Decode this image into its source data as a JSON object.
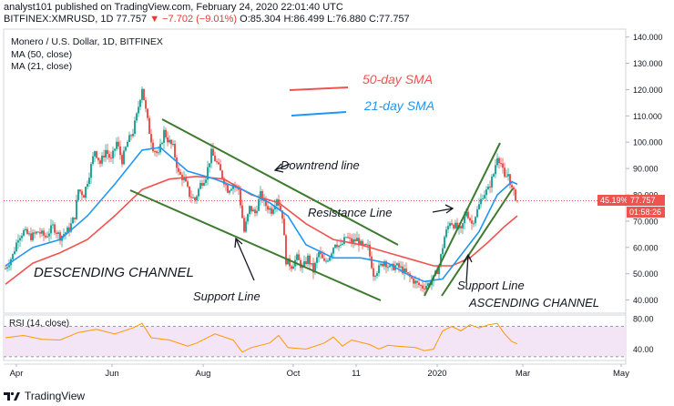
{
  "header": {
    "line1": "analyst101 published on TradingView.com, February 24, 2020 22:01:40 UTC",
    "symbol": "BITFINEX:XMRUSD, 1D",
    "close_text": "77.757",
    "change_text": "▼ −7.702 (−9.01%)",
    "ohlc_text": "O:85.304  H:86.499  L:76.880  C:77.757"
  },
  "legend": {
    "title": "Monero / U.S. Dollar, 1D, BITFINEX",
    "ma50": "MA (50, close)",
    "ma21": "MA (21, close)"
  },
  "annotations": {
    "sma50": "50-day SMA",
    "sma21": "21-day SMA",
    "downtrend": "Downtrend line",
    "resistance": "Resistance Line",
    "descending": "DESCENDING CHANNEL",
    "support_left": "Support Line",
    "support_right": "Support Line",
    "ascending": "ASCENDING CHANNEL"
  },
  "price_axis": {
    "ticks": [
      "140.000",
      "130.000",
      "120.000",
      "110.000",
      "100.000",
      "90.000",
      "80.000",
      "70.000",
      "60.000",
      "50.000",
      "40.000"
    ],
    "current_price": "77.757",
    "pct_badge": "45.19%",
    "countdown": "01:58:26"
  },
  "rsi": {
    "label": "RSI (14, close)",
    "ticks": [
      "80.00",
      "40.00"
    ]
  },
  "time_axis": [
    "Apr",
    "Jun",
    "Aug",
    "Oct",
    "11",
    "2020",
    "Mar",
    "May"
  ],
  "footer": {
    "brand": "TradingView"
  },
  "colors": {
    "up": "#26a69a",
    "down": "#ef5350",
    "ma50": "#ef5350",
    "ma21": "#2196f3",
    "channel": "#3d7a2e",
    "rsi_line": "#ff9800",
    "rsi_band": "#f3e5f5"
  },
  "chart_data": {
    "type": "candlestick",
    "title": "Monero / U.S. Dollar, 1D, BITFINEX",
    "ylim": [
      35,
      143
    ],
    "price_closes": [
      [
        0,
        52
      ],
      [
        8,
        57
      ],
      [
        14,
        64
      ],
      [
        20,
        66
      ],
      [
        28,
        64
      ],
      [
        36,
        66
      ],
      [
        44,
        64
      ],
      [
        52,
        68
      ],
      [
        60,
        64
      ],
      [
        70,
        67
      ],
      [
        76,
        72
      ],
      [
        80,
        82
      ],
      [
        86,
        80
      ],
      [
        92,
        88
      ],
      [
        98,
        97
      ],
      [
        104,
        92
      ],
      [
        110,
        97
      ],
      [
        116,
        93
      ],
      [
        122,
        100
      ],
      [
        128,
        93
      ],
      [
        134,
        100
      ],
      [
        140,
        104
      ],
      [
        144,
        110
      ],
      [
        150,
        121
      ],
      [
        154,
        112
      ],
      [
        158,
        104
      ],
      [
        162,
        98
      ],
      [
        168,
        95
      ],
      [
        174,
        104
      ],
      [
        178,
        101
      ],
      [
        184,
        98
      ],
      [
        190,
        88
      ],
      [
        196,
        86
      ],
      [
        202,
        80
      ],
      [
        208,
        78
      ],
      [
        214,
        84
      ],
      [
        220,
        87
      ],
      [
        226,
        96
      ],
      [
        232,
        92
      ],
      [
        238,
        87
      ],
      [
        244,
        82
      ],
      [
        250,
        84
      ],
      [
        256,
        82
      ],
      [
        262,
        66
      ],
      [
        268,
        75
      ],
      [
        274,
        73
      ],
      [
        280,
        80
      ],
      [
        286,
        76
      ],
      [
        292,
        74
      ],
      [
        298,
        79
      ],
      [
        304,
        72
      ],
      [
        308,
        55
      ],
      [
        314,
        53
      ],
      [
        320,
        56
      ],
      [
        326,
        52
      ],
      [
        332,
        56
      ],
      [
        338,
        51
      ],
      [
        344,
        58
      ],
      [
        350,
        54
      ],
      [
        356,
        57
      ],
      [
        362,
        62
      ],
      [
        368,
        60
      ],
      [
        374,
        64
      ],
      [
        380,
        62
      ],
      [
        386,
        63
      ],
      [
        392,
        60
      ],
      [
        398,
        60
      ],
      [
        404,
        50
      ],
      [
        410,
        52
      ],
      [
        416,
        55
      ],
      [
        422,
        52
      ],
      [
        428,
        53
      ],
      [
        434,
        52
      ],
      [
        440,
        50
      ],
      [
        446,
        48
      ],
      [
        452,
        46
      ],
      [
        458,
        45
      ],
      [
        464,
        46
      ],
      [
        470,
        48
      ],
      [
        476,
        53
      ],
      [
        482,
        64
      ],
      [
        488,
        70
      ],
      [
        494,
        68
      ],
      [
        500,
        66
      ],
      [
        506,
        74
      ],
      [
        512,
        69
      ],
      [
        518,
        74
      ],
      [
        524,
        80
      ],
      [
        530,
        82
      ],
      [
        536,
        88
      ],
      [
        540,
        95
      ],
      [
        544,
        92
      ],
      [
        548,
        86
      ],
      [
        552,
        88
      ],
      [
        556,
        82
      ],
      [
        562,
        77.757
      ]
    ],
    "sma50": [
      [
        0,
        46
      ],
      [
        30,
        54
      ],
      [
        60,
        58
      ],
      [
        90,
        63
      ],
      [
        120,
        72
      ],
      [
        150,
        82
      ],
      [
        180,
        86
      ],
      [
        210,
        87
      ],
      [
        240,
        86
      ],
      [
        270,
        80
      ],
      [
        300,
        77
      ],
      [
        330,
        69
      ],
      [
        360,
        63
      ],
      [
        390,
        61
      ],
      [
        420,
        58
      ],
      [
        450,
        55
      ],
      [
        470,
        53
      ],
      [
        490,
        53
      ],
      [
        510,
        56
      ],
      [
        530,
        62
      ],
      [
        548,
        68
      ],
      [
        562,
        72
      ]
    ],
    "sma21": [
      [
        0,
        53
      ],
      [
        30,
        60
      ],
      [
        60,
        63
      ],
      [
        90,
        72
      ],
      [
        120,
        84
      ],
      [
        150,
        97
      ],
      [
        170,
        98
      ],
      [
        200,
        89
      ],
      [
        230,
        86
      ],
      [
        260,
        82
      ],
      [
        290,
        77
      ],
      [
        310,
        72
      ],
      [
        330,
        61
      ],
      [
        360,
        56
      ],
      [
        390,
        56
      ],
      [
        420,
        54
      ],
      [
        440,
        50
      ],
      [
        460,
        47
      ],
      [
        480,
        48
      ],
      [
        500,
        57
      ],
      [
        520,
        66
      ],
      [
        540,
        80
      ],
      [
        556,
        85
      ],
      [
        562,
        84
      ]
    ],
    "rsi": [
      [
        0,
        55
      ],
      [
        20,
        58
      ],
      [
        40,
        53
      ],
      [
        60,
        52
      ],
      [
        80,
        62
      ],
      [
        100,
        66
      ],
      [
        120,
        60
      ],
      [
        140,
        68
      ],
      [
        150,
        74
      ],
      [
        160,
        55
      ],
      [
        180,
        52
      ],
      [
        200,
        44
      ],
      [
        210,
        48
      ],
      [
        230,
        60
      ],
      [
        250,
        52
      ],
      [
        260,
        36
      ],
      [
        270,
        42
      ],
      [
        290,
        48
      ],
      [
        300,
        58
      ],
      [
        310,
        42
      ],
      [
        330,
        40
      ],
      [
        350,
        48
      ],
      [
        360,
        56
      ],
      [
        370,
        44
      ],
      [
        380,
        52
      ],
      [
        400,
        46
      ],
      [
        410,
        40
      ],
      [
        420,
        45
      ],
      [
        430,
        44
      ],
      [
        450,
        42
      ],
      [
        460,
        38
      ],
      [
        470,
        40
      ],
      [
        480,
        64
      ],
      [
        490,
        70
      ],
      [
        500,
        64
      ],
      [
        510,
        72
      ],
      [
        520,
        68
      ],
      [
        530,
        72
      ],
      [
        540,
        74
      ],
      [
        548,
        60
      ],
      [
        556,
        50
      ],
      [
        562,
        47
      ]
    ],
    "rsi_ylim": [
      25,
      85
    ],
    "time_ticks": [
      [
        "Apr",
        12
      ],
      [
        "Jun",
        117
      ],
      [
        "Aug",
        217
      ],
      [
        "Oct",
        316
      ],
      [
        "11",
        385
      ],
      [
        "2020",
        474
      ],
      [
        "Mar",
        568
      ],
      [
        "May",
        676
      ]
    ],
    "channels": {
      "descending_upper": [
        [
          178,
          131
        ],
        [
          437,
          269
        ]
      ],
      "descending_lower": [
        [
          143,
          209
        ],
        [
          418,
          330
        ]
      ],
      "ascending_upper": [
        [
          466,
          325
        ],
        [
          549,
          157
        ]
      ],
      "ascending_lower": [
        [
          485,
          325
        ],
        [
          563,
          207
        ]
      ]
    }
  }
}
